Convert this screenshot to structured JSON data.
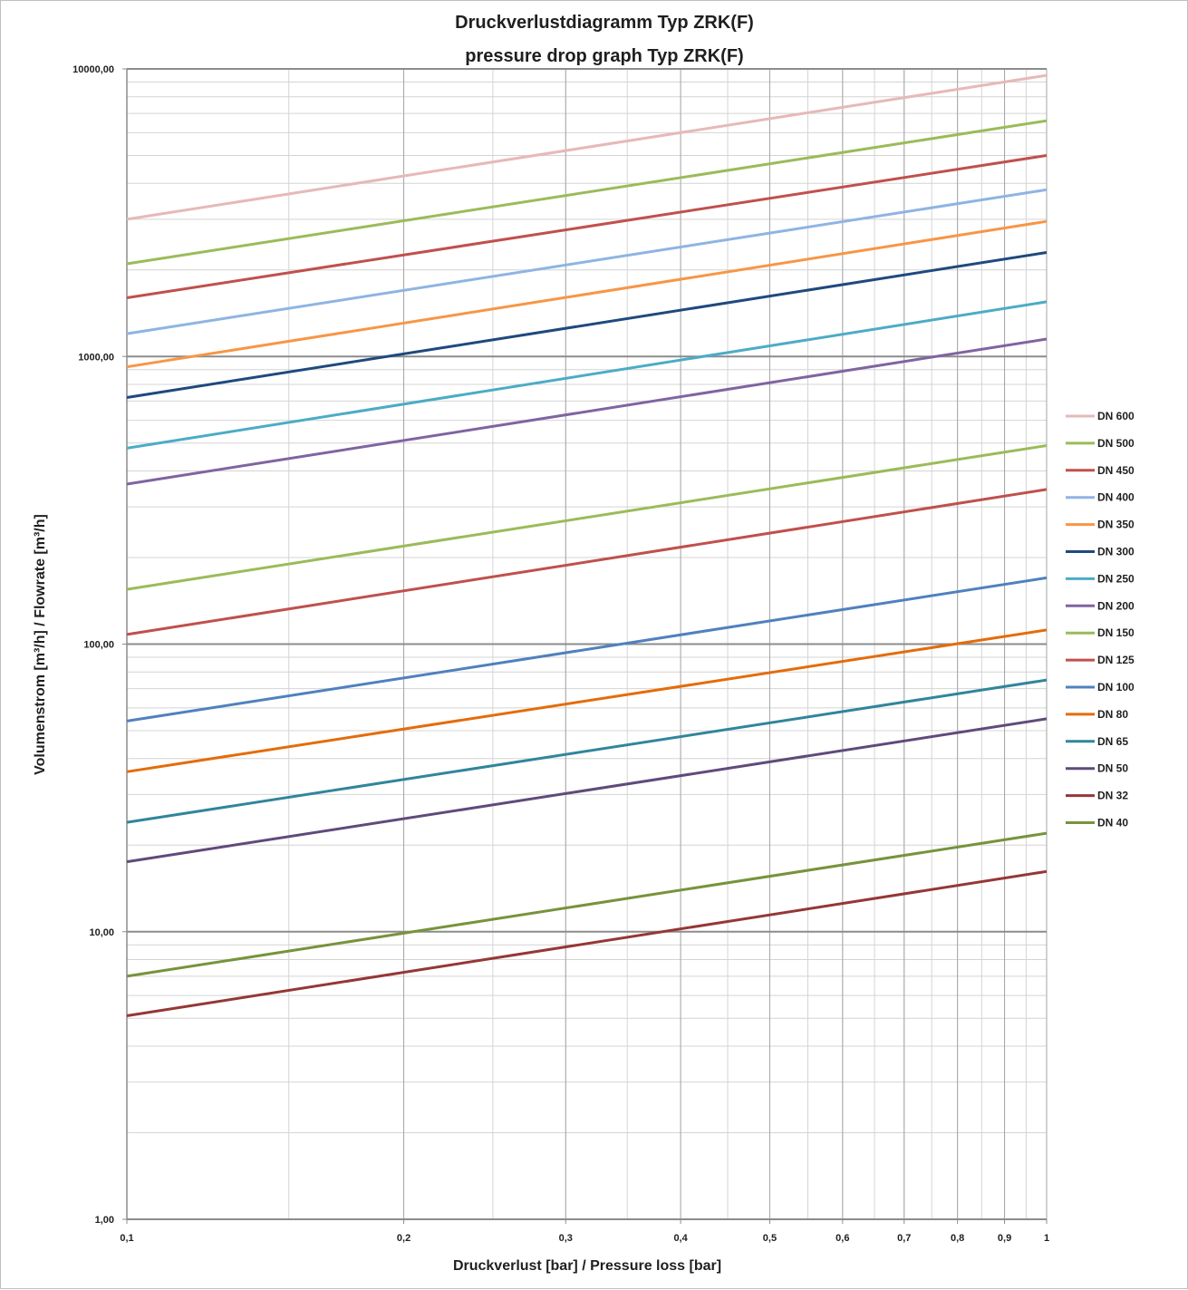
{
  "chart_data": {
    "type": "line",
    "title": "Druckverlustdiagramm Typ ZRK(F)",
    "subtitle": "pressure drop graph Typ ZRK(F)",
    "xlabel": "Druckverlust [bar] / Pressure loss [bar]",
    "ylabel": "Volumenstrom [m³/h] / Flowrate [m³/h]",
    "x_scale": "log",
    "y_scale": "log",
    "xlim": [
      0.1,
      1
    ],
    "ylim": [
      1,
      10000
    ],
    "x_ticks": [
      {
        "value": 0.1,
        "label": "0,1"
      },
      {
        "value": 0.2,
        "label": "0,2"
      },
      {
        "value": 0.3,
        "label": "0,3"
      },
      {
        "value": 0.4,
        "label": "0,4"
      },
      {
        "value": 0.5,
        "label": "0,5"
      },
      {
        "value": 0.6,
        "label": "0,6"
      },
      {
        "value": 0.7,
        "label": "0,7"
      },
      {
        "value": 0.8,
        "label": "0,8"
      },
      {
        "value": 0.9,
        "label": "0,9"
      },
      {
        "value": 1,
        "label": "1"
      }
    ],
    "y_ticks": [
      {
        "value": 1,
        "label": "1,00"
      },
      {
        "value": 10,
        "label": "10,00"
      },
      {
        "value": 100,
        "label": "100,00"
      },
      {
        "value": 1000,
        "label": "1000,00"
      },
      {
        "value": 10000,
        "label": "10000,00"
      }
    ],
    "grid": true,
    "legend_position": "right",
    "series": [
      {
        "name": "DN 600",
        "color": "#e6b9b8",
        "x": [
          0.1,
          1
        ],
        "y": [
          3000,
          9500
        ]
      },
      {
        "name": "DN 500",
        "color": "#9bbb59",
        "x": [
          0.1,
          1
        ],
        "y": [
          2100,
          6600
        ]
      },
      {
        "name": "DN 450",
        "color": "#c0504d",
        "x": [
          0.1,
          1
        ],
        "y": [
          1600,
          5000
        ]
      },
      {
        "name": "DN 400",
        "color": "#8eb4e3",
        "x": [
          0.1,
          1
        ],
        "y": [
          1200,
          3800
        ]
      },
      {
        "name": "DN 350",
        "color": "#f79646",
        "x": [
          0.1,
          1
        ],
        "y": [
          920,
          2950
        ]
      },
      {
        "name": "DN 300",
        "color": "#1f497d",
        "x": [
          0.1,
          1
        ],
        "y": [
          720,
          2300
        ]
      },
      {
        "name": "DN 250",
        "color": "#4bacc6",
        "x": [
          0.1,
          1
        ],
        "y": [
          480,
          1550
        ]
      },
      {
        "name": "DN 200",
        "color": "#8064a2",
        "x": [
          0.1,
          1
        ],
        "y": [
          360,
          1150
        ]
      },
      {
        "name": "DN 150",
        "color": "#9bbb59",
        "x": [
          0.1,
          1
        ],
        "y": [
          155,
          490
        ]
      },
      {
        "name": "DN 125",
        "color": "#c0504d",
        "x": [
          0.1,
          1
        ],
        "y": [
          108,
          345
        ]
      },
      {
        "name": "DN 100",
        "color": "#4f81bd",
        "x": [
          0.1,
          1
        ],
        "y": [
          54,
          170
        ]
      },
      {
        "name": "DN 80",
        "color": "#e46c0a",
        "x": [
          0.1,
          1
        ],
        "y": [
          36,
          112
        ]
      },
      {
        "name": "DN 65",
        "color": "#31859c",
        "x": [
          0.1,
          1
        ],
        "y": [
          24,
          75
        ]
      },
      {
        "name": "DN 50",
        "color": "#604a7b",
        "x": [
          0.1,
          1
        ],
        "y": [
          17.5,
          55
        ]
      },
      {
        "name": "DN 32",
        "color": "#953735",
        "x": [
          0.1,
          1
        ],
        "y": [
          5.1,
          16.2
        ]
      },
      {
        "name": "DN 40",
        "color": "#77933c",
        "x": [
          0.1,
          1
        ],
        "y": [
          7,
          22
        ]
      }
    ],
    "plot_order": [
      "DN 600",
      "DN 500",
      "DN 450",
      "DN 400",
      "DN 350",
      "DN 300",
      "DN 250",
      "DN 200",
      "DN 150",
      "DN 125",
      "DN 100",
      "DN 80",
      "DN 65",
      "DN 50",
      "DN 40",
      "DN 32"
    ]
  }
}
